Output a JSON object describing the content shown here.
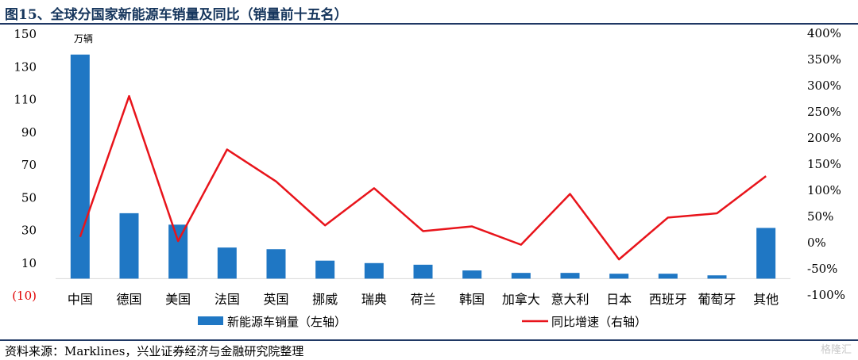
{
  "header": {
    "title": "图15、全球分国家新能源车销量及同比（销量前十五名）"
  },
  "footer": {
    "source": "资料来源：Marklines，兴业证券经济与金融研究院整理",
    "watermark": "格隆汇"
  },
  "colors": {
    "bar": "#1f77c4",
    "line": "#e8141b",
    "title": "#16365d",
    "rule": "#1f3864",
    "axis": "#d9d9d9"
  },
  "chart_data": {
    "type": "bar",
    "title": "",
    "categories": [
      "中国",
      "德国",
      "美国",
      "法国",
      "英国",
      "挪威",
      "瑞典",
      "荷兰",
      "韩国",
      "加拿大",
      "意大利",
      "日本",
      "西班牙",
      "葡萄牙",
      "其他"
    ],
    "unit_label": "万辆",
    "series": [
      {
        "name": "新能源车销量（左轴）",
        "type": "bar",
        "axis": "left",
        "values": [
          137,
          40,
          33,
          19,
          18,
          11,
          9.5,
          8.5,
          5,
          3.5,
          3.5,
          3,
          3,
          2,
          31
        ]
      },
      {
        "name": "同比增速（右轴）",
        "type": "line",
        "axis": "right",
        "values": [
          11,
          280,
          3,
          178,
          117,
          33,
          104,
          22,
          31,
          -4,
          93,
          -32,
          48,
          56,
          127
        ]
      }
    ],
    "y_left": {
      "ticks": [
        150,
        130,
        110,
        90,
        70,
        50,
        30,
        10,
        -10
      ],
      "tick_labels": [
        "150",
        "130",
        "110",
        "90",
        "70",
        "50",
        "30",
        "10",
        "(10)"
      ],
      "range": [
        -10,
        150
      ]
    },
    "y_right": {
      "ticks": [
        400,
        350,
        300,
        250,
        200,
        150,
        100,
        50,
        0,
        -50,
        -100
      ],
      "tick_labels": [
        "400%",
        "350%",
        "300%",
        "250%",
        "200%",
        "150%",
        "100%",
        "50%",
        "0%",
        "-50%",
        "-100%"
      ],
      "range": [
        -100,
        400
      ]
    },
    "grid": false,
    "legend_position": "bottom"
  }
}
